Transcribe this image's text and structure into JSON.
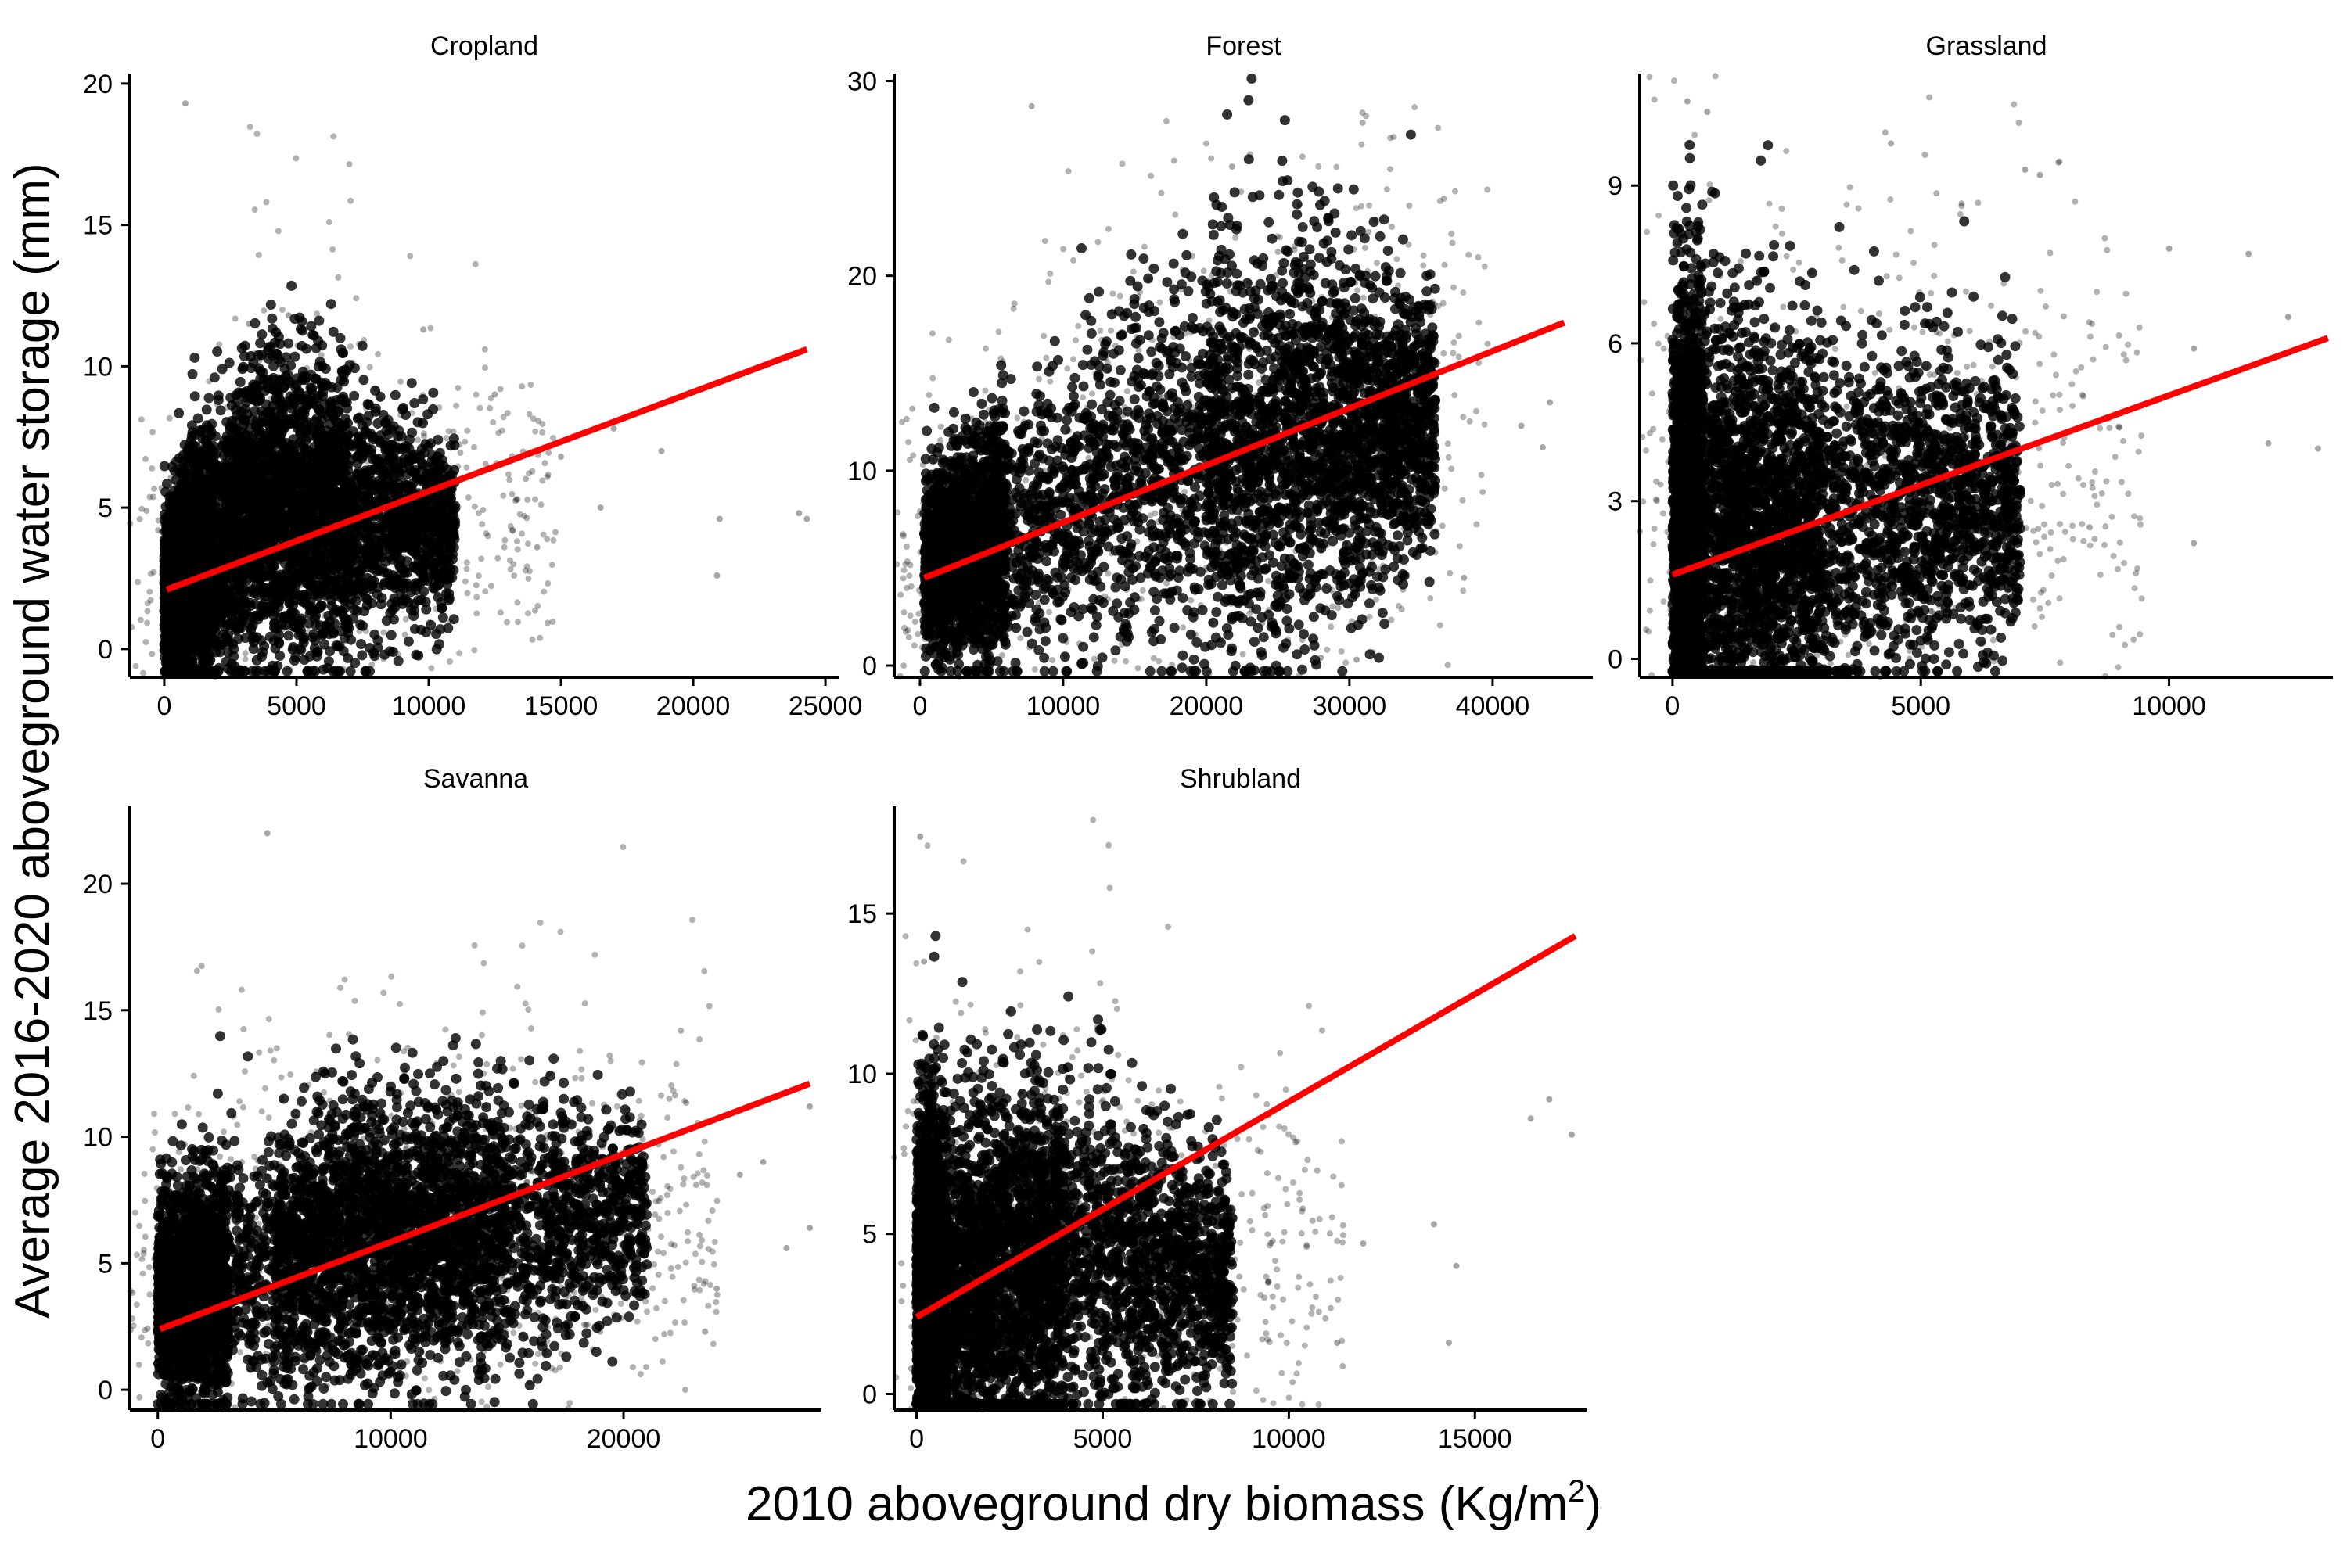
{
  "chart_data": {
    "type": "scatter",
    "xlabel_main": "2010 aboveground dry biomass (Kg/m",
    "xlabel_sup": "2",
    "xlabel_close": ")",
    "ylabel": "Average 2016-2020 aboveground water storage (mm)",
    "point_color": "#000000",
    "fit_color": "#ff0000",
    "grid": false,
    "legend": "none",
    "panels": [
      {
        "name": "Cropland",
        "xlim": [
          -1300,
          25500
        ],
        "ylim": [
          -1,
          20.3
        ],
        "xticks": [
          0,
          5000,
          10000,
          15000,
          20000,
          25000
        ],
        "xtick_labels": [
          "0",
          "5000",
          "10000",
          "15000",
          "20000",
          "25000"
        ],
        "yticks": [
          0,
          5,
          10,
          15,
          20
        ],
        "ytick_labels": [
          "0",
          "5",
          "10",
          "15",
          "20"
        ],
        "fit": {
          "x": [
            100,
            24300
          ],
          "y": [
            2.1,
            10.6
          ]
        },
        "cloud": {
          "x": [
            [
              0,
              11000
            ],
            [
              0,
              1800
            ],
            [
              1000,
              7000
            ]
          ],
          "y_center": [
            [
              0,
              2.1
            ],
            [
              4000,
              5.2
            ],
            [
              11000,
              4.2
            ]
          ],
          "y_spread": [
            [
              0,
              3.2
            ],
            [
              4000,
              5.5
            ],
            [
              11000,
              3.0
            ]
          ]
        },
        "outliers": [
          [
            800,
            19.3
          ],
          [
            4700,
            11.8
          ],
          [
            3200,
            11.5
          ],
          [
            9800,
            11.3
          ],
          [
            12500,
            9.0
          ],
          [
            15000,
            6.8
          ],
          [
            16500,
            5.0
          ],
          [
            17000,
            7.8
          ],
          [
            24000,
            4.8
          ],
          [
            24300,
            4.6
          ],
          [
            21000,
            4.6
          ],
          [
            20900,
            2.6
          ],
          [
            18800,
            7.0
          ],
          [
            14100,
            3.6
          ]
        ]
      },
      {
        "name": "Forest",
        "xlim": [
          -1800,
          47000
        ],
        "ylim": [
          -0.6,
          30.3
        ],
        "xticks": [
          0,
          10000,
          20000,
          30000,
          40000
        ],
        "xtick_labels": [
          "0",
          "10000",
          "20000",
          "30000",
          "40000"
        ],
        "yticks": [
          0,
          10,
          20,
          30
        ],
        "ytick_labels": [
          "0",
          "10",
          "20",
          "30"
        ],
        "fit": {
          "x": [
            300,
            45000
          ],
          "y": [
            4.5,
            17.6
          ]
        },
        "cloud": {
          "x": [
            [
              300,
              36000
            ],
            [
              300,
              6000
            ],
            [
              20000,
              36000
            ]
          ],
          "y_center": [
            [
              0,
              5.0
            ],
            [
              15000,
              9.5
            ],
            [
              26000,
              11.5
            ],
            [
              36000,
              13.0
            ]
          ],
          "y_spread": [
            [
              0,
              4.5
            ],
            [
              15000,
              9.0
            ],
            [
              26000,
              10.5
            ],
            [
              36000,
              6.0
            ]
          ]
        },
        "outliers": [
          [
            7800,
            28.7
          ],
          [
            21800,
            25.6
          ],
          [
            44000,
            13.5
          ],
          [
            42000,
            12.3
          ],
          [
            43500,
            11.2
          ],
          [
            38000,
            4.5
          ],
          [
            2000,
            0.3
          ],
          [
            30500,
            0.3
          ],
          [
            28000,
            0.4
          ]
        ]
      },
      {
        "name": "Grassland",
        "xlim": [
          -660,
          13300
        ],
        "ylim": [
          -0.35,
          11.1
        ],
        "xticks": [
          0,
          5000,
          10000
        ],
        "xtick_labels": [
          "0",
          "5000",
          "10000"
        ],
        "yticks": [
          0,
          3,
          6,
          9
        ],
        "ytick_labels": [
          "0",
          "3",
          "6",
          "9"
        ],
        "fit": {
          "x": [
            0,
            13200
          ],
          "y": [
            1.6,
            6.1
          ]
        },
        "cloud": {
          "x": [
            [
              0,
              7000
            ],
            [
              0,
              600
            ],
            [
              0,
              3000
            ]
          ],
          "y_center": [
            [
              0,
              2.2
            ],
            [
              2000,
              2.5
            ],
            [
              5000,
              3.0
            ],
            [
              7000,
              3.0
            ]
          ],
          "y_spread": [
            [
              0,
              5.0
            ],
            [
              2000,
              3.8
            ],
            [
              5000,
              3.0
            ],
            [
              7000,
              2.5
            ]
          ]
        },
        "outliers": [
          [
            300,
            10.6
          ],
          [
            700,
            10.4
          ],
          [
            4400,
            9.8
          ],
          [
            7100,
            9.3
          ],
          [
            7400,
            9.2
          ],
          [
            10000,
            7.8
          ],
          [
            11600,
            7.7
          ],
          [
            12400,
            6.5
          ],
          [
            13000,
            4.0
          ],
          [
            12000,
            4.1
          ],
          [
            10500,
            5.9
          ],
          [
            9000,
            4.4
          ],
          [
            10500,
            2.2
          ],
          [
            8400,
            2.5
          ]
        ]
      },
      {
        "name": "Savanna",
        "xlim": [
          -1200,
          28500
        ],
        "ylim": [
          -0.8,
          23.0
        ],
        "xticks": [
          0,
          10000,
          20000
        ],
        "xtick_labels": [
          "0",
          "10000",
          "20000"
        ],
        "yticks": [
          0,
          5,
          10,
          15,
          20
        ],
        "ytick_labels": [
          "0",
          "5",
          "10",
          "15",
          "20"
        ],
        "fit": {
          "x": [
            100,
            28000
          ],
          "y": [
            2.4,
            12.1
          ]
        },
        "cloud": {
          "x": [
            [
              0,
              21000
            ],
            [
              0,
              3000
            ],
            [
              5000,
              15000
            ]
          ],
          "y_center": [
            [
              0,
              3.5
            ],
            [
              8000,
              6.0
            ],
            [
              16000,
              6.5
            ],
            [
              21000,
              7.0
            ]
          ],
          "y_spread": [
            [
              0,
              4.0
            ],
            [
              8000,
              5.5
            ],
            [
              16000,
              5.0
            ],
            [
              21000,
              3.5
            ]
          ]
        },
        "outliers": [
          [
            4700,
            22.0
          ],
          [
            28000,
            11.2
          ],
          [
            27000,
            5.6
          ],
          [
            28000,
            6.4
          ],
          [
            24000,
            4.0
          ],
          [
            23500,
            2.3
          ],
          [
            25000,
            8.5
          ],
          [
            21500,
            9.7
          ],
          [
            26000,
            9.0
          ],
          [
            19000,
            2.3
          ]
        ]
      },
      {
        "name": "Shrubland",
        "xlim": [
          -600,
          18000
        ],
        "ylim": [
          -0.5,
          18.3
        ],
        "xticks": [
          0,
          5000,
          10000,
          15000
        ],
        "xtick_labels": [
          "0",
          "5000",
          "10000",
          "15000"
        ],
        "yticks": [
          0,
          5,
          10,
          15
        ],
        "ytick_labels": [
          "0",
          "5",
          "10",
          "15"
        ],
        "fit": {
          "x": [
            0,
            17700
          ],
          "y": [
            2.4,
            14.3
          ]
        },
        "cloud": {
          "x": [
            [
              0,
              8500
            ],
            [
              0,
              800
            ],
            [
              0,
              4000
            ]
          ],
          "y_center": [
            [
              0,
              3.0
            ],
            [
              4000,
              4.5
            ],
            [
              8500,
              3.5
            ]
          ],
          "y_spread": [
            [
              0,
              6.0
            ],
            [
              4000,
              5.0
            ],
            [
              8500,
              3.5
            ]
          ]
        },
        "outliers": [
          [
            100,
            17.4
          ],
          [
            200,
            13.5
          ],
          [
            12000,
            4.7
          ],
          [
            13900,
            5.3
          ],
          [
            14300,
            1.6
          ],
          [
            14500,
            4.0
          ],
          [
            17600,
            8.1
          ],
          [
            16500,
            8.6
          ],
          [
            11300,
            1.6
          ],
          [
            17000,
            9.2
          ]
        ]
      }
    ]
  }
}
